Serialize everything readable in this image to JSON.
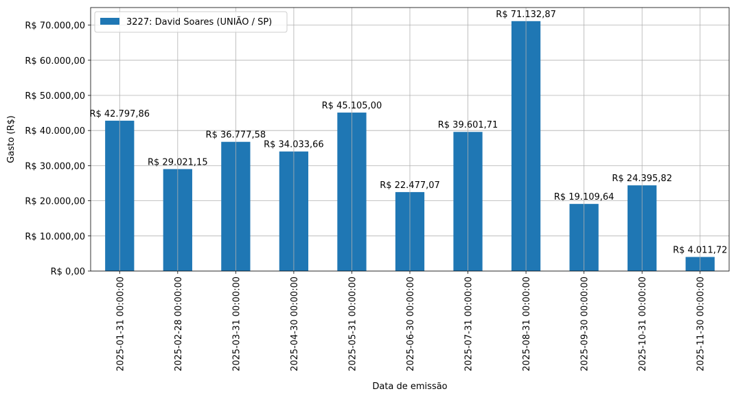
{
  "chart_data": {
    "type": "bar",
    "xlabel": "Data de emissão",
    "ylabel": "Gasto (R$)",
    "ylim": [
      0,
      75000
    ],
    "yticks": [
      0,
      10000,
      20000,
      30000,
      40000,
      50000,
      60000,
      70000
    ],
    "ytick_labels": [
      "R$ 0,00",
      "R$ 10.000,00",
      "R$ 20.000,00",
      "R$ 30.000,00",
      "R$ 40.000,00",
      "R$ 50.000,00",
      "R$ 60.000,00",
      "R$ 70.000,00"
    ],
    "grid": true,
    "legend_position": "top-left",
    "categories": [
      "2025-01-31 00:00:00",
      "2025-02-28 00:00:00",
      "2025-03-31 00:00:00",
      "2025-04-30 00:00:00",
      "2025-05-31 00:00:00",
      "2025-06-30 00:00:00",
      "2025-07-31 00:00:00",
      "2025-08-31 00:00:00",
      "2025-09-30 00:00:00",
      "2025-10-31 00:00:00",
      "2025-11-30 00:00:00"
    ],
    "series": [
      {
        "name": "3227: David Soares (UNIÃO / SP)",
        "color": "#1f77b4",
        "values": [
          42797.86,
          29021.15,
          36777.58,
          34033.66,
          45105.0,
          22477.07,
          39601.71,
          71132.87,
          19109.64,
          24395.82,
          4011.72
        ],
        "data_labels": [
          "R$ 42.797,86",
          "R$ 29.021,15",
          "R$ 36.777,58",
          "R$ 34.033,66",
          "R$ 45.105,00",
          "R$ 22.477,07",
          "R$ 39.601,71",
          "R$ 71.132,87",
          "R$ 19.109,64",
          "R$ 24.395,82",
          "R$ 4.011,72"
        ]
      }
    ]
  }
}
